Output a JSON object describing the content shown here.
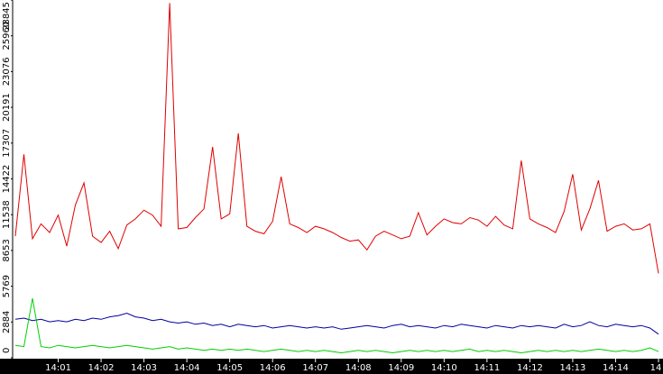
{
  "chart_data": {
    "type": "line",
    "categories": [
      null,
      null,
      null,
      null,
      null,
      "14:01",
      null,
      null,
      null,
      null,
      "14:02",
      null,
      null,
      null,
      null,
      "14:03",
      null,
      null,
      null,
      null,
      "14:04",
      null,
      null,
      null,
      null,
      "14:05",
      null,
      null,
      null,
      null,
      "14:06",
      null,
      null,
      null,
      null,
      "14:07",
      null,
      null,
      null,
      null,
      "14:08",
      null,
      null,
      null,
      null,
      "14:09",
      null,
      null,
      null,
      null,
      "14:10",
      null,
      null,
      null,
      null,
      "14:11",
      null,
      null,
      null,
      null,
      "14:12",
      null,
      null,
      null,
      null,
      "14:13",
      null,
      null,
      null,
      null,
      "14:14",
      null,
      null,
      null,
      null,
      "14"
    ],
    "series": [
      {
        "color": "#e00000",
        "values": [
          9800,
          16400,
          9600,
          10800,
          10100,
          11500,
          9000,
          12300,
          14100,
          9800,
          9300,
          10200,
          8800,
          10700,
          11200,
          11900,
          11500,
          10600,
          28600,
          10400,
          10500,
          11300,
          12000,
          17000,
          11200,
          11600,
          18100,
          10600,
          10200,
          10000,
          11000,
          14600,
          10800,
          10500,
          10100,
          10600,
          10400,
          10100,
          9700,
          9400,
          9500,
          8700,
          9800,
          10200,
          9900,
          9600,
          9800,
          11700,
          9900,
          10600,
          11200,
          10900,
          10800,
          11300,
          11100,
          10600,
          11400,
          10700,
          10400,
          15900,
          11200,
          10800,
          10500,
          10100,
          11800,
          14800,
          10300,
          12000,
          14300,
          10200,
          10600,
          10800,
          10300,
          10400,
          10800,
          6800
        ]
      },
      {
        "color": "#0000a0",
        "values": [
          3100,
          3200,
          3000,
          3100,
          2900,
          3000,
          2900,
          3100,
          3000,
          3200,
          3100,
          3300,
          3400,
          3600,
          3300,
          3200,
          3000,
          3100,
          2900,
          2800,
          2900,
          2700,
          2800,
          2600,
          2700,
          2500,
          2700,
          2600,
          2500,
          2600,
          2400,
          2500,
          2600,
          2500,
          2400,
          2500,
          2400,
          2500,
          2300,
          2400,
          2500,
          2600,
          2500,
          2400,
          2600,
          2700,
          2500,
          2600,
          2500,
          2400,
          2600,
          2500,
          2700,
          2600,
          2500,
          2400,
          2600,
          2500,
          2400,
          2600,
          2500,
          2600,
          2500,
          2400,
          2700,
          2500,
          2600,
          2900,
          2600,
          2500,
          2700,
          2600,
          2500,
          2600,
          2400,
          1900
        ]
      },
      {
        "color": "#00d000",
        "values": [
          1000,
          900,
          4800,
          900,
          800,
          1000,
          900,
          800,
          900,
          1000,
          900,
          800,
          900,
          1000,
          900,
          800,
          700,
          800,
          900,
          700,
          800,
          700,
          600,
          700,
          600,
          700,
          600,
          700,
          600,
          500,
          600,
          700,
          600,
          500,
          600,
          500,
          600,
          500,
          400,
          500,
          600,
          500,
          600,
          500,
          400,
          500,
          600,
          500,
          600,
          500,
          600,
          500,
          600,
          700,
          500,
          600,
          500,
          600,
          500,
          400,
          500,
          600,
          500,
          600,
          500,
          600,
          500,
          600,
          700,
          600,
          500,
          600,
          500,
          600,
          800,
          500
        ]
      }
    ],
    "ylim": [
      0,
      28845
    ],
    "yticks": [
      0,
      2884,
      5769,
      8653,
      11538,
      14422,
      17307,
      20191,
      23076,
      25960,
      28845
    ]
  }
}
